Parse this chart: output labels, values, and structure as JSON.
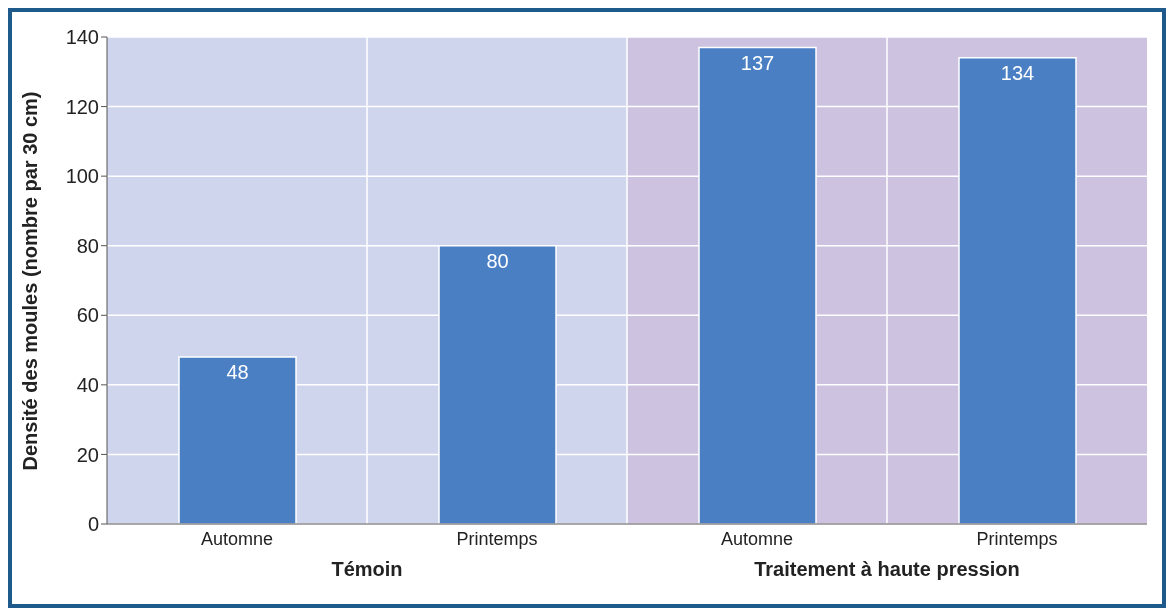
{
  "chart_data": {
    "type": "bar",
    "ylabel": "Densité des moules (nombre par 30 cm)",
    "categories": [
      "Automne",
      "Printemps",
      "Automne",
      "Printemps"
    ],
    "values": [
      48,
      80,
      137,
      134
    ],
    "color": "#4a7fc4",
    "data_labels": true,
    "ylim": [
      0,
      140
    ],
    "yticks": [
      0,
      20,
      40,
      60,
      80,
      100,
      120,
      140
    ],
    "grid": true,
    "annotations": [
      "Témoin",
      "Traitement à haute pression"
    ]
  }
}
